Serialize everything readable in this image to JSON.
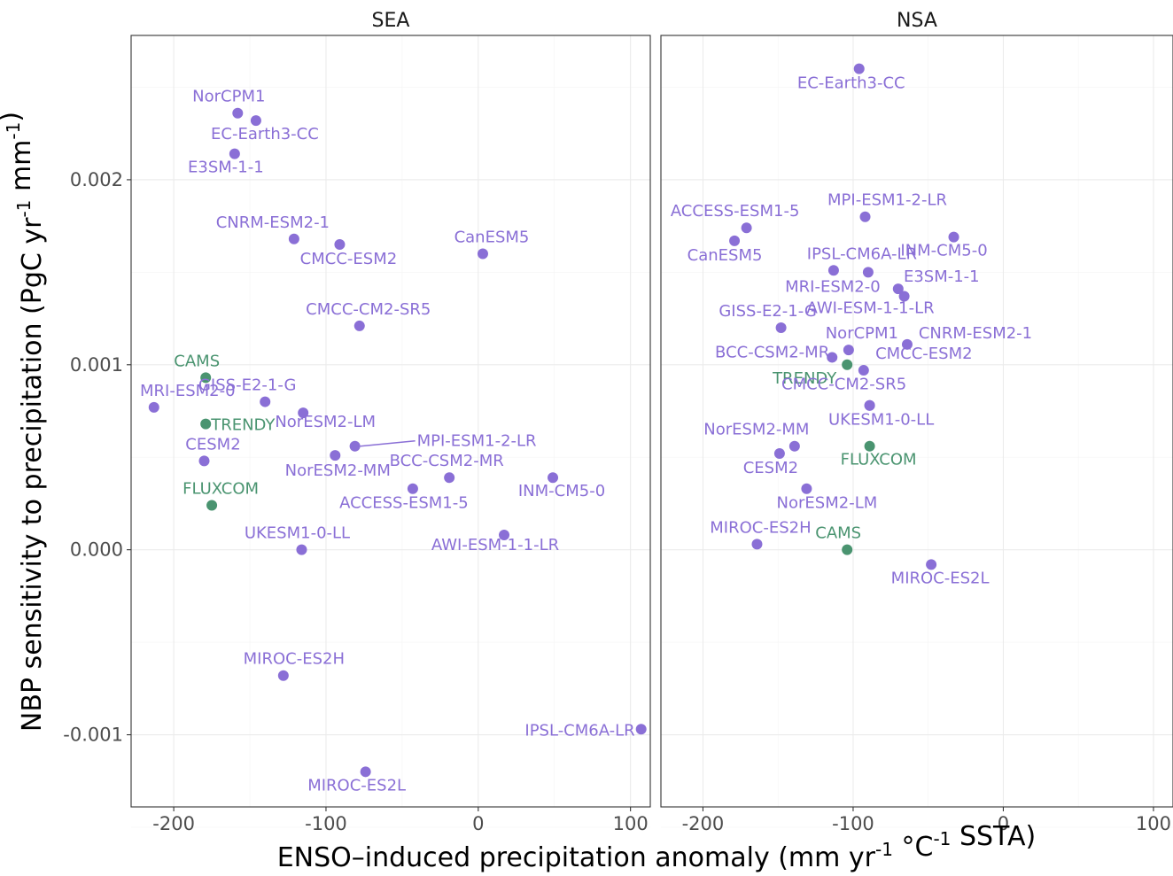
{
  "colors": {
    "model": "#8a6fd6",
    "observation": "#4a9470"
  },
  "chart_data": {
    "type": "scatter",
    "xlabel": "ENSO–induced precipitation anomaly (mm yr-1 °C-1 SSTA)",
    "ylabel": "NBP sensitivity to precipitation (PgC yr-1 mm-1)",
    "xlabel_parts": [
      "ENSO",
      "–",
      "induced precipitation anomaly (mm yr",
      "-1",
      " °C",
      "-1",
      " SSTA)"
    ],
    "ylabel_parts": [
      "NBP sensitivity to precipitation (PgC yr",
      "-1",
      " mm",
      "-1",
      ")"
    ],
    "xlim": [
      -228,
      113
    ],
    "ylim": [
      -0.00139,
      0.00278
    ],
    "x_ticks": [
      -200,
      -100,
      0,
      100
    ],
    "x_tick_labels": [
      "-200",
      "-100",
      "0",
      "100"
    ],
    "y_ticks": [
      -0.001,
      0.0,
      0.001,
      0.002
    ],
    "y_tick_labels": [
      "-0.001",
      "0.000",
      "0.001",
      "0.002"
    ],
    "grid": true,
    "legend": "none",
    "panels": [
      {
        "title": "SEA",
        "points": [
          {
            "label": "NorCPM1",
            "x": -158,
            "y": 0.00236,
            "group": "model"
          },
          {
            "label": "EC-Earth3-CC",
            "x": -146,
            "y": 0.00232,
            "group": "model"
          },
          {
            "label": "E3SM-1-1",
            "x": -160,
            "y": 0.00214,
            "group": "model"
          },
          {
            "label": "CNRM-ESM2-1",
            "x": -121,
            "y": 0.00168,
            "group": "model"
          },
          {
            "label": "CMCC-ESM2",
            "x": -91,
            "y": 0.00165,
            "group": "model"
          },
          {
            "label": "CanESM5",
            "x": 3,
            "y": 0.0016,
            "group": "model"
          },
          {
            "label": "CMCC-CM2-SR5",
            "x": -78,
            "y": 0.00121,
            "group": "model"
          },
          {
            "label": "CAMS",
            "x": -179,
            "y": 0.00093,
            "group": "obs"
          },
          {
            "label": "MRI-ESM2-0",
            "x": -213,
            "y": 0.00077,
            "group": "model"
          },
          {
            "label": "GISS-E2-1-G",
            "x": -140,
            "y": 0.0008,
            "group": "model"
          },
          {
            "label": "NorESM2-LM",
            "x": -115,
            "y": 0.00074,
            "group": "model"
          },
          {
            "label": "TRENDY",
            "x": -179,
            "y": 0.00068,
            "group": "obs"
          },
          {
            "label": "MPI-ESM1-2-LR",
            "x": -81,
            "y": 0.00056,
            "group": "model"
          },
          {
            "label": "CESM2",
            "x": -180,
            "y": 0.00048,
            "group": "model"
          },
          {
            "label": "NorESM2-MM",
            "x": -94,
            "y": 0.00051,
            "group": "model"
          },
          {
            "label": "BCC-CSM2-MR",
            "x": -19,
            "y": 0.00039,
            "group": "model"
          },
          {
            "label": "INM-CM5-0",
            "x": 49,
            "y": 0.00039,
            "group": "model"
          },
          {
            "label": "ACCESS-ESM1-5",
            "x": -43,
            "y": 0.00033,
            "group": "model"
          },
          {
            "label": "FLUXCOM",
            "x": -175,
            "y": 0.00024,
            "group": "obs"
          },
          {
            "label": "AWI-ESM-1-1-LR",
            "x": 17,
            "y": 8e-05,
            "group": "model"
          },
          {
            "label": "UKESM1-0-LL",
            "x": -116,
            "y": 0.0,
            "group": "model"
          },
          {
            "label": "MIROC-ES2H",
            "x": -128,
            "y": -0.00068,
            "group": "model"
          },
          {
            "label": "IPSL-CM6A-LR",
            "x": 107,
            "y": -0.00097,
            "group": "model"
          },
          {
            "label": "MIROC-ES2L",
            "x": -74,
            "y": -0.0012,
            "group": "model"
          }
        ]
      },
      {
        "title": "NSA",
        "points": [
          {
            "label": "EC-Earth3-CC",
            "x": -96,
            "y": 0.0026,
            "group": "model"
          },
          {
            "label": "MPI-ESM1-2-LR",
            "x": -92,
            "y": 0.0018,
            "group": "model"
          },
          {
            "label": "ACCESS-ESM1-5",
            "x": -171,
            "y": 0.00174,
            "group": "model"
          },
          {
            "label": "CanESM5",
            "x": -179,
            "y": 0.00167,
            "group": "model"
          },
          {
            "label": "INM-CM5-0",
            "x": -33,
            "y": 0.00169,
            "group": "model"
          },
          {
            "label": "IPSL-CM6A-LR",
            "x": -113,
            "y": 0.00151,
            "group": "model"
          },
          {
            "label": "MRI-ESM2-0",
            "x": -90,
            "y": 0.0015,
            "group": "model"
          },
          {
            "label": "E3SM-1-1",
            "x": -70,
            "y": 0.00141,
            "group": "model"
          },
          {
            "label": "AWI-ESM-1-1-LR",
            "x": -66,
            "y": 0.00137,
            "group": "model"
          },
          {
            "label": "GISS-E2-1-G",
            "x": -148,
            "y": 0.0012,
            "group": "model"
          },
          {
            "label": "CNRM-ESM2-1",
            "x": -64,
            "y": 0.00111,
            "group": "model"
          },
          {
            "label": "NorCPM1",
            "x": -103,
            "y": 0.00108,
            "group": "model"
          },
          {
            "label": "BCC-CSM2-MR",
            "x": -114,
            "y": 0.00104,
            "group": "model"
          },
          {
            "label": "TRENDY",
            "x": -104,
            "y": 0.001,
            "group": "obs"
          },
          {
            "label": "CMCC-ESM2",
            "x": -93,
            "y": 0.00097,
            "group": "model"
          },
          {
            "label": "CMCC-CM2-SR5",
            "x": -89,
            "y": 0.00078,
            "group": "model"
          },
          {
            "label": "UKESM1-0-LL",
            "x": -89,
            "y": 0.00078,
            "group": "model"
          },
          {
            "label": "FLUXCOM",
            "x": -89,
            "y": 0.00056,
            "group": "obs"
          },
          {
            "label": "NorESM2-MM",
            "x": -139,
            "y": 0.00056,
            "group": "model"
          },
          {
            "label": "CESM2",
            "x": -149,
            "y": 0.00052,
            "group": "model"
          },
          {
            "label": "NorESM2-LM",
            "x": -131,
            "y": 0.00033,
            "group": "model"
          },
          {
            "label": "MIROC-ES2H",
            "x": -164,
            "y": 3e-05,
            "group": "model"
          },
          {
            "label": "CAMS",
            "x": -104,
            "y": 0.0,
            "group": "obs"
          },
          {
            "label": "MIROC-ES2L",
            "x": -48,
            "y": -8e-05,
            "group": "model"
          }
        ]
      }
    ]
  }
}
